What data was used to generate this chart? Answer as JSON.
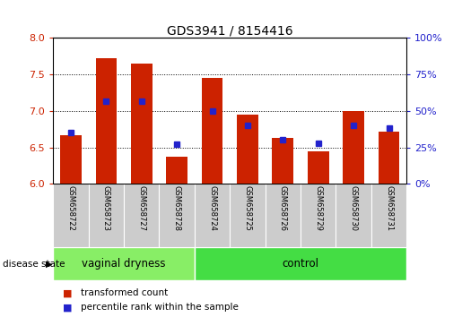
{
  "title": "GDS3941 / 8154416",
  "samples": [
    "GSM658722",
    "GSM658723",
    "GSM658727",
    "GSM658728",
    "GSM658724",
    "GSM658725",
    "GSM658726",
    "GSM658729",
    "GSM658730",
    "GSM658731"
  ],
  "red_values": [
    6.67,
    7.72,
    7.65,
    6.37,
    7.45,
    6.95,
    6.63,
    6.45,
    7.0,
    6.72
  ],
  "blue_values": [
    35,
    57,
    57,
    27,
    50,
    40,
    30,
    28,
    40,
    38
  ],
  "ylim_left": [
    6.0,
    8.0
  ],
  "ylim_right": [
    0,
    100
  ],
  "yticks_left": [
    6.0,
    6.5,
    7.0,
    7.5,
    8.0
  ],
  "yticks_right": [
    0,
    25,
    50,
    75,
    100
  ],
  "bar_color": "#CC2200",
  "dot_color": "#2222CC",
  "base_value": 6.0,
  "groups": [
    {
      "label": "vaginal dryness",
      "indices": [
        0,
        1,
        2,
        3
      ],
      "color": "#88EE66"
    },
    {
      "label": "control",
      "indices": [
        4,
        5,
        6,
        7,
        8,
        9
      ],
      "color": "#44DD44"
    }
  ],
  "group_label": "disease state",
  "legend_red": "transformed count",
  "legend_blue": "percentile rank within the sample",
  "dotted_yticks": [
    6.5,
    7.0,
    7.5
  ],
  "bar_width": 0.6
}
